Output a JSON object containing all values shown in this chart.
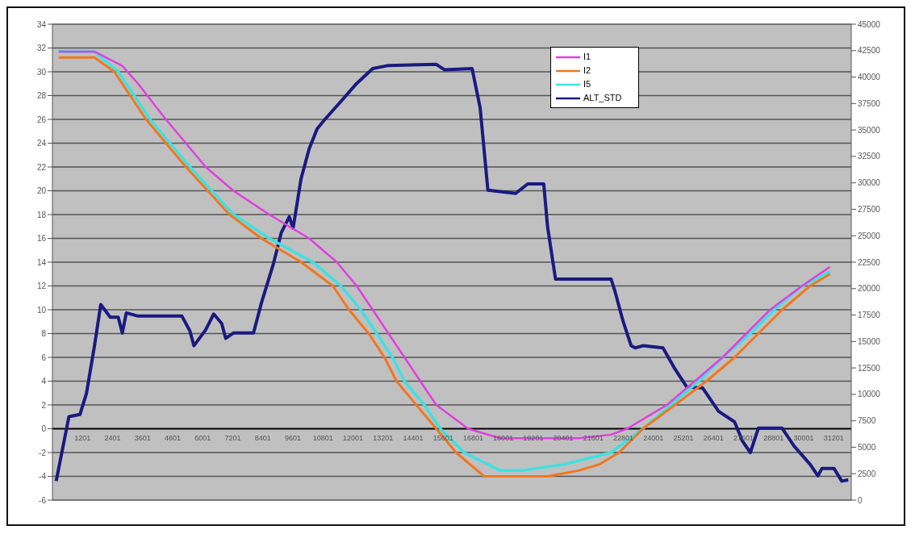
{
  "chart_data": {
    "type": "line",
    "xlim": [
      1,
      31900
    ],
    "xticks": [
      1201,
      2401,
      3601,
      4801,
      6001,
      7201,
      8401,
      9601,
      10801,
      12001,
      13201,
      14401,
      15601,
      16801,
      18001,
      19201,
      20401,
      21601,
      22801,
      24001,
      25201,
      26401,
      27601,
      28801,
      30001,
      31201
    ],
    "ylim": [
      -6,
      34
    ],
    "yticks": [
      -6,
      -4,
      -2,
      0,
      2,
      4,
      6,
      8,
      10,
      12,
      14,
      16,
      18,
      20,
      22,
      24,
      26,
      28,
      30,
      32,
      34
    ],
    "y2lim": [
      0,
      45000
    ],
    "y2ticks": [
      0,
      2500,
      5000,
      7500,
      10000,
      12500,
      15000,
      17500,
      20000,
      22500,
      25000,
      27500,
      30000,
      32500,
      35000,
      37500,
      40000,
      42500,
      45000
    ],
    "grid": "y",
    "legend": "top",
    "marker": "none",
    "line_style": "solid",
    "series": [
      {
        "name": "I1",
        "color": "#e040e0",
        "x": [
          250,
          1680,
          2790,
          3420,
          4530,
          5330,
          6120,
          7230,
          8660,
          10250,
          11360,
          12150,
          12790,
          13420,
          14060,
          14690,
          15330,
          16600,
          17870,
          21040,
          22310,
          22950,
          24540,
          25650,
          26760,
          27710,
          28660,
          29930,
          31050
        ],
        "values": [
          31.7,
          31.7,
          30.5,
          29,
          26,
          24,
          22,
          20,
          18,
          16,
          14,
          12,
          10,
          8,
          6,
          4,
          2,
          0,
          -0.8,
          -0.8,
          -0.5,
          0,
          2,
          4,
          6,
          8,
          10,
          12,
          13.6
        ]
      },
      {
        "name": "I2",
        "color": "#f07820",
        "x": [
          250,
          1680,
          2470,
          3740,
          5330,
          7070,
          8340,
          9930,
          11200,
          11840,
          12630,
          13260,
          13740,
          14530,
          15330,
          16120,
          17240,
          19770,
          21040,
          21840,
          22630,
          23580,
          24860,
          26120,
          27240,
          28190,
          29140,
          30250,
          31050
        ],
        "values": [
          31.2,
          31.2,
          30,
          26,
          22,
          18,
          16,
          14,
          12,
          10,
          8,
          6,
          4,
          2,
          0,
          -2,
          -4,
          -4,
          -3.5,
          -3,
          -2,
          0,
          2,
          4,
          6,
          8,
          10,
          12,
          13
        ]
      },
      {
        "name": "I5",
        "color": "#40e0e0",
        "x": [
          250,
          1680,
          2630,
          3900,
          5490,
          7230,
          8660,
          10410,
          11520,
          12310,
          12950,
          13580,
          14060,
          14850,
          15490,
          16440,
          17870,
          18820,
          20410,
          22310,
          23580,
          24700,
          25810,
          26760,
          27870,
          28820,
          29930,
          31050
        ],
        "values": [
          31.7,
          31.7,
          30,
          26,
          22,
          18,
          16,
          14,
          12,
          10,
          8,
          6,
          4,
          2,
          0,
          -2,
          -3.5,
          -3.5,
          -3,
          -2,
          0,
          2,
          4,
          6,
          8,
          10,
          12,
          13.2
        ]
      },
      {
        "name": "ALT_STD",
        "color": "#1a1a80",
        "axis": "y2",
        "x": [
          150,
          660,
          1100,
          1360,
          1680,
          1930,
          2310,
          2630,
          2790,
          2950,
          3420,
          5170,
          5490,
          5650,
          6120,
          6440,
          6760,
          6920,
          7230,
          8030,
          8340,
          8820,
          9140,
          9460,
          9610,
          9930,
          10250,
          10570,
          10880,
          11520,
          12150,
          12790,
          13420,
          15330,
          15650,
          16760,
          17080,
          17390,
          18500,
          18980,
          19620,
          19770,
          20090,
          22310,
          22470,
          22790,
          23110,
          23270,
          23580,
          24380,
          24860,
          25330,
          25970,
          26600,
          27240,
          27550,
          27870,
          28190,
          29140,
          29620,
          30250,
          30570,
          30730,
          31210,
          31520,
          31780
        ],
        "values": [
          1800,
          7900,
          8100,
          10100,
          14600,
          18500,
          17300,
          17300,
          15800,
          17700,
          17400,
          17400,
          16000,
          14600,
          16100,
          17600,
          16700,
          15300,
          15800,
          15800,
          18600,
          22300,
          25300,
          26800,
          25700,
          30400,
          33200,
          35100,
          36000,
          37700,
          39400,
          40800,
          41100,
          41200,
          40700,
          40800,
          37100,
          29300,
          29000,
          29900,
          29900,
          25900,
          20900,
          20900,
          19700,
          16900,
          14600,
          14400,
          14600,
          14400,
          12400,
          10700,
          10600,
          8400,
          7400,
          5600,
          4500,
          6800,
          6800,
          5100,
          3400,
          2300,
          3000,
          3000,
          1800,
          1900
        ]
      }
    ]
  }
}
